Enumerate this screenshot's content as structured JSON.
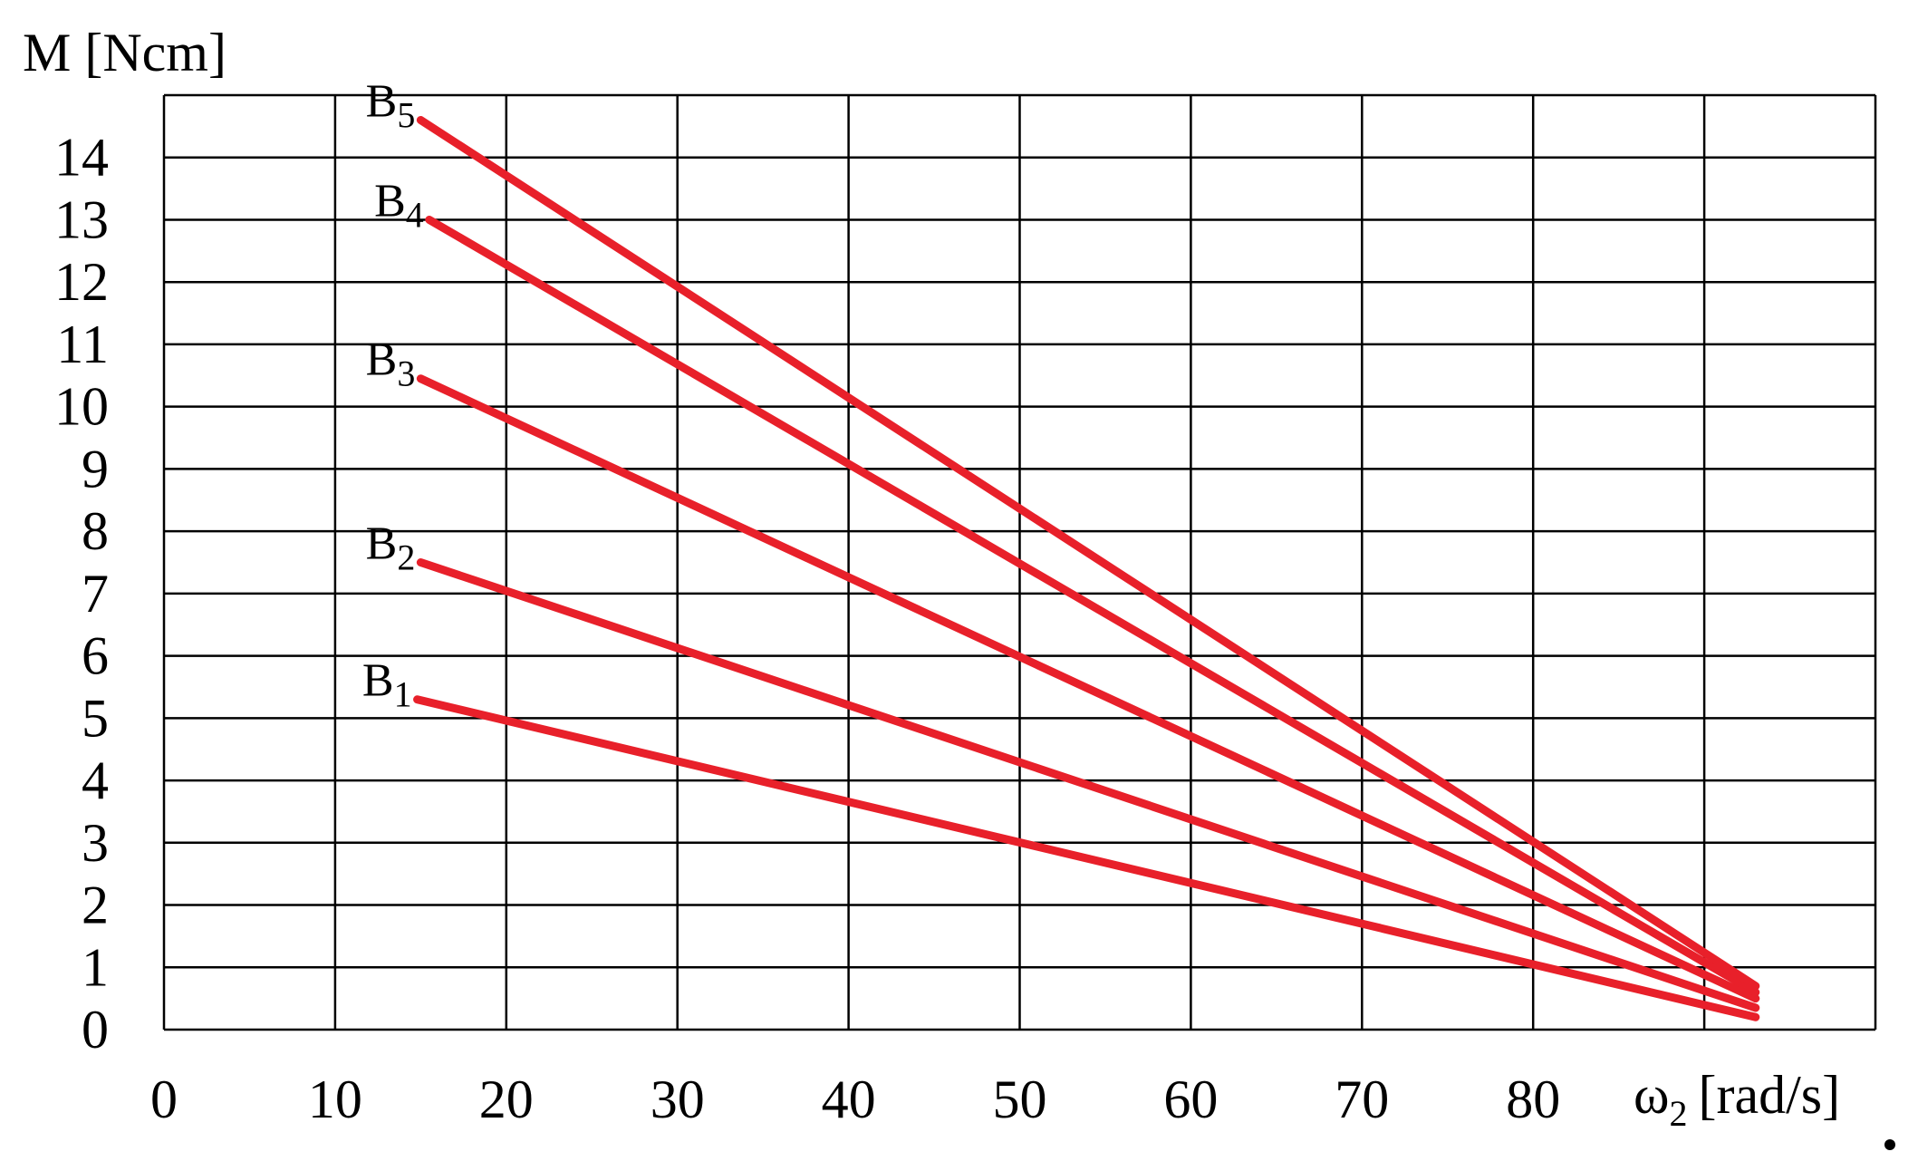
{
  "chart_data": {
    "type": "line",
    "title": "",
    "ylabel": "M [Ncm]",
    "xlabel": "ω2 [rad/s]",
    "xlabel_main": "ω",
    "xlabel_sub": "2",
    "xlabel_unit": "[rad/s]",
    "xlim": [
      0,
      100
    ],
    "ylim": [
      0,
      15
    ],
    "x_ticks": [
      0,
      10,
      20,
      30,
      40,
      50,
      60,
      70,
      80
    ],
    "x_tick_labels": [
      "0",
      "10",
      "20",
      "30",
      "40",
      "50",
      "60",
      "70",
      "80"
    ],
    "y_ticks": [
      0,
      1,
      2,
      3,
      4,
      5,
      6,
      7,
      8,
      9,
      10,
      11,
      12,
      13,
      14
    ],
    "y_tick_labels": [
      "0",
      "1",
      "2",
      "3",
      "4",
      "5",
      "6",
      "7",
      "8",
      "9",
      "10",
      "11",
      "12",
      "13",
      "14"
    ],
    "x_gridlines": [
      0,
      10,
      20,
      30,
      40,
      50,
      60,
      70,
      80,
      90,
      100
    ],
    "y_gridlines": [
      0,
      1,
      2,
      3,
      4,
      5,
      6,
      7,
      8,
      9,
      10,
      11,
      12,
      13,
      14,
      15
    ],
    "grid": true,
    "line_color": "#e8202a",
    "series": [
      {
        "name": "B1",
        "label_main": "B",
        "label_sub": "1",
        "x": [
          14.8,
          93
        ],
        "y": [
          5.3,
          0.2
        ]
      },
      {
        "name": "B2",
        "label_main": "B",
        "label_sub": "2",
        "x": [
          15,
          93
        ],
        "y": [
          7.5,
          0.35
        ]
      },
      {
        "name": "B3",
        "label_main": "B",
        "label_sub": "3",
        "x": [
          15,
          93
        ],
        "y": [
          10.45,
          0.5
        ]
      },
      {
        "name": "B4",
        "label_main": "B",
        "label_sub": "4",
        "x": [
          15.5,
          93
        ],
        "y": [
          13.0,
          0.6
        ]
      },
      {
        "name": "B5",
        "label_main": "B",
        "label_sub": "5",
        "x": [
          15,
          93
        ],
        "y": [
          14.6,
          0.7
        ]
      }
    ]
  }
}
